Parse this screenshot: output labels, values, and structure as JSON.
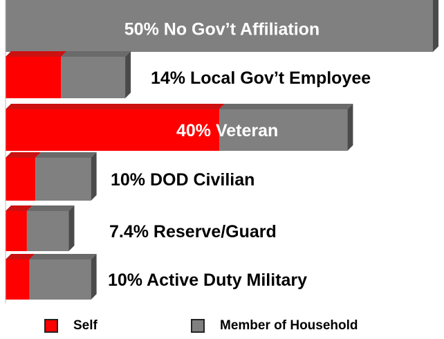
{
  "chart_data": {
    "type": "bar",
    "orientation": "horizontal",
    "stacked": true,
    "categories": [
      "No Gov't Affiliation",
      "Local Gov't Employee",
      "Veteran",
      "DOD Civilian",
      "Reserve/Guard",
      "Active Duty Military"
    ],
    "labels": [
      "50% No Gov’t Affiliation",
      "14% Local Gov’t Employee",
      "40% Veteran",
      "10% DOD Civilian",
      "7.4% Reserve/Guard",
      "10% Active Duty Military"
    ],
    "inside_percent_label": "40%",
    "inside_category_label": "Veteran",
    "totals": [
      50,
      14,
      40,
      10,
      7.4,
      10
    ],
    "series": [
      {
        "name": "Self",
        "values": [
          0,
          6.5,
          25,
          3.5,
          2.5,
          2.8
        ]
      },
      {
        "name": "Member of Household",
        "values": [
          50,
          7.5,
          15,
          6.5,
          4.9,
          7.2
        ]
      }
    ],
    "xlim": [
      0,
      50
    ],
    "legend_position": "bottom",
    "grid": false,
    "colors": {
      "Self": "#ff0000",
      "Member of Household": "#808080",
      "Self_top": "#cc1111",
      "Member_top": "#6a6a6a",
      "Member_side": "#4a4a4a",
      "Self_side": "#aa0000"
    }
  },
  "legend": {
    "self_label": "Self",
    "household_label": "Member of Household",
    "self_color": "#ff0000",
    "household_color": "#808080"
  }
}
